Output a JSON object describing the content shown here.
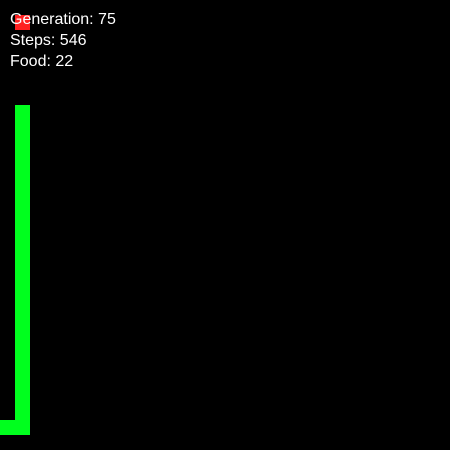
{
  "colors": {
    "background": "#000000",
    "snake": "#00ff1e",
    "food": "#ff2020",
    "text": "#ffffff"
  },
  "hud": {
    "generation": "Generation: 75",
    "steps": "Steps: 546",
    "food": "Food: 22"
  }
}
